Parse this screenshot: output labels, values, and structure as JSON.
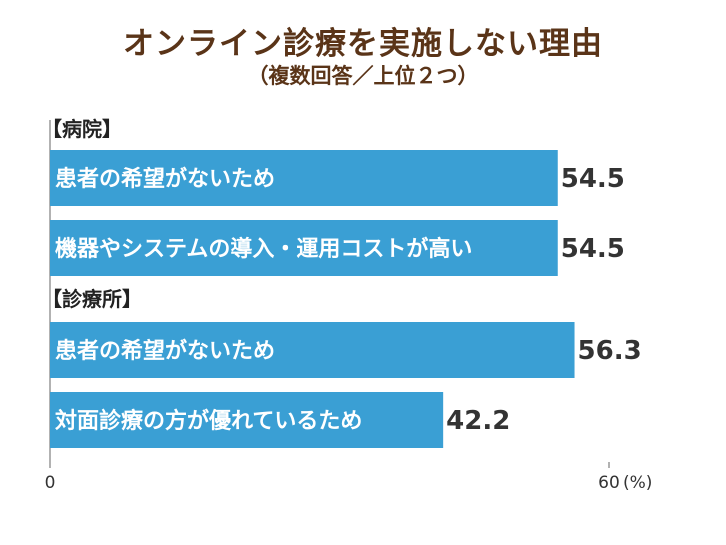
{
  "title": "オンライン診療を実施しない理由",
  "subtitle": "（複数回答／上位２つ）",
  "colors": {
    "bar": "#3a9fd4",
    "title": "#5a3418"
  },
  "chart_data": {
    "type": "bar",
    "orientation": "horizontal",
    "xlim": [
      0,
      60
    ],
    "x_ticks": [
      "0",
      "60"
    ],
    "unit_label": "(%)",
    "groups": [
      {
        "label": "【病院】",
        "bars": [
          {
            "label": "患者の希望がないため",
            "value": 54.5,
            "value_text": "54.5"
          },
          {
            "label": "機器やシステムの導入・運用コストが高い",
            "value": 54.5,
            "value_text": "54.5"
          }
        ]
      },
      {
        "label": "【診療所】",
        "bars": [
          {
            "label": "患者の希望がないため",
            "value": 56.3,
            "value_text": "56.3"
          },
          {
            "label": "対面診療の方が優れているため",
            "value": 42.2,
            "value_text": "42.2"
          }
        ]
      }
    ]
  }
}
